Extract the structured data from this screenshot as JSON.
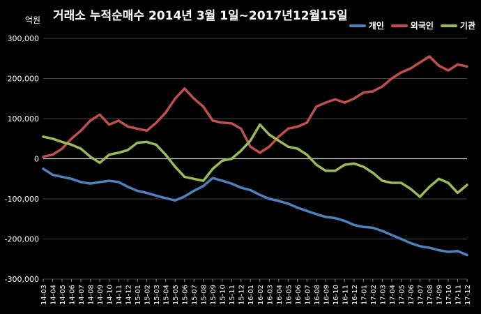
{
  "chart_data": {
    "type": "line",
    "title": "거래소 누적순매수 2014년 3월 1일~2017년12월15일",
    "unit_label": "억원",
    "ylim": [
      -300000,
      300000
    ],
    "y_ticks": [
      "300,000",
      "200,000",
      "100,000",
      "0",
      "-100,000",
      "-200,000",
      "-300,000"
    ],
    "y_tick_values": [
      300000,
      200000,
      100000,
      0,
      -100000,
      -200000,
      -300000
    ],
    "categories": [
      "14-03",
      "14-04",
      "14-05",
      "14-06",
      "14-07",
      "14-08",
      "14-09",
      "14-10",
      "14-11",
      "14-12",
      "15-01",
      "15-02",
      "15-03",
      "15-04",
      "15-05",
      "15-06",
      "15-07",
      "15-08",
      "15-09",
      "15-10",
      "15-11",
      "15-12",
      "16-01",
      "16-02",
      "16-03",
      "16-04",
      "16-05",
      "16-06",
      "16-07",
      "16-08",
      "16-09",
      "16-10",
      "16-11",
      "16-12",
      "17-01",
      "17-02",
      "17-03",
      "17-04",
      "17-05",
      "17-06",
      "17-07",
      "17-08",
      "17-09",
      "17-10",
      "17-11",
      "17-12"
    ],
    "legend_position": "top-right",
    "grid": true,
    "series": [
      {
        "name": "개인",
        "color": "#4f81bd",
        "values": [
          -25000,
          -40000,
          -45000,
          -50000,
          -58000,
          -62000,
          -58000,
          -55000,
          -58000,
          -70000,
          -80000,
          -85000,
          -92000,
          -98000,
          -104000,
          -94000,
          -80000,
          -68000,
          -48000,
          -55000,
          -62000,
          -72000,
          -78000,
          -90000,
          -100000,
          -105000,
          -112000,
          -122000,
          -130000,
          -138000,
          -145000,
          -148000,
          -155000,
          -165000,
          -170000,
          -172000,
          -180000,
          -190000,
          -200000,
          -210000,
          -218000,
          -222000,
          -228000,
          -232000,
          -230000,
          -240000
        ]
      },
      {
        "name": "외국인",
        "color": "#c0504d",
        "values": [
          5000,
          10000,
          25000,
          50000,
          70000,
          95000,
          110000,
          85000,
          95000,
          80000,
          75000,
          70000,
          90000,
          115000,
          150000,
          175000,
          150000,
          130000,
          95000,
          90000,
          88000,
          75000,
          30000,
          15000,
          30000,
          55000,
          75000,
          80000,
          90000,
          130000,
          140000,
          148000,
          140000,
          150000,
          165000,
          168000,
          180000,
          200000,
          215000,
          225000,
          240000,
          255000,
          232000,
          220000,
          235000,
          230000
        ]
      },
      {
        "name": "기관",
        "color": "#9bbb59",
        "values": [
          55000,
          50000,
          42000,
          35000,
          25000,
          5000,
          -10000,
          10000,
          15000,
          22000,
          40000,
          42000,
          35000,
          10000,
          -20000,
          -45000,
          -50000,
          -55000,
          -25000,
          -5000,
          0,
          20000,
          45000,
          85000,
          60000,
          45000,
          30000,
          25000,
          10000,
          -15000,
          -30000,
          -30000,
          -15000,
          -12000,
          -20000,
          -35000,
          -55000,
          -60000,
          -60000,
          -75000,
          -95000,
          -70000,
          -50000,
          -60000,
          -85000,
          -65000
        ]
      }
    ]
  }
}
